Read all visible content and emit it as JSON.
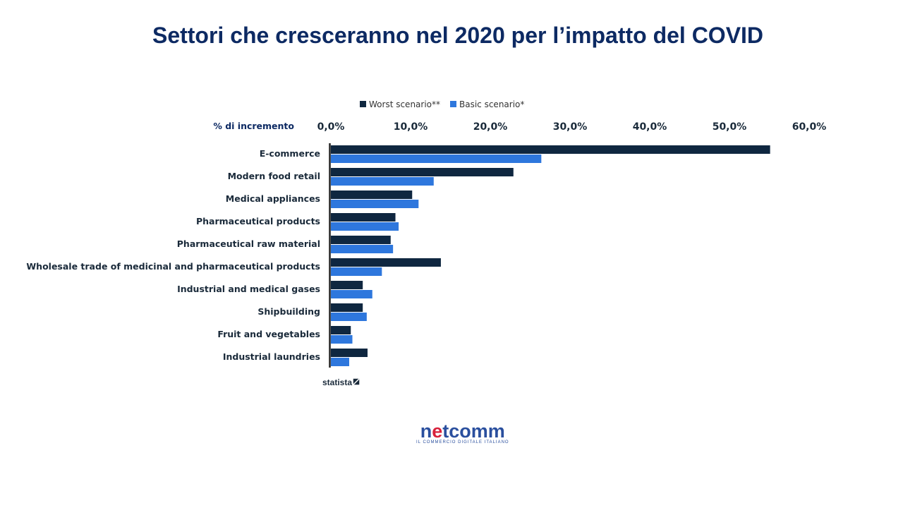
{
  "chart_data": {
    "type": "bar",
    "orientation": "horizontal",
    "title": "Settori che cresceranno nel 2020 per l’impatto del COVID",
    "xlabel": "% di incremento",
    "xlim": [
      0,
      60
    ],
    "xticks": [
      "0,0%",
      "10,0%",
      "20,0%",
      "30,0%",
      "40,0%",
      "50,0%",
      "60,0%"
    ],
    "legend_position": "top",
    "categories": [
      "E-commerce",
      "Modern food retail",
      "Medical appliances",
      "Pharmaceutical products",
      "Pharmaceutical raw material",
      "Wholesale trade of medicinal and pharmaceutical products",
      "Industrial and medical gases",
      "Shipbuilding",
      "Fruit and vegetables",
      "Industrial laundries"
    ],
    "series": [
      {
        "name": "Worst scenario**",
        "color": "#0f2740",
        "values": [
          55.1,
          22.9,
          10.2,
          8.1,
          7.5,
          13.8,
          4.0,
          4.0,
          2.5,
          4.6
        ]
      },
      {
        "name": "Basic scenario*",
        "color": "#2e77dd",
        "values": [
          26.4,
          12.9,
          11.0,
          8.5,
          7.8,
          6.4,
          5.2,
          4.5,
          2.7,
          2.3
        ]
      }
    ]
  },
  "source_logo": "statista",
  "footer_logo": {
    "name": "netcomm",
    "tagline": "IL COMMERCIO DIGITALE ITALIANO"
  }
}
